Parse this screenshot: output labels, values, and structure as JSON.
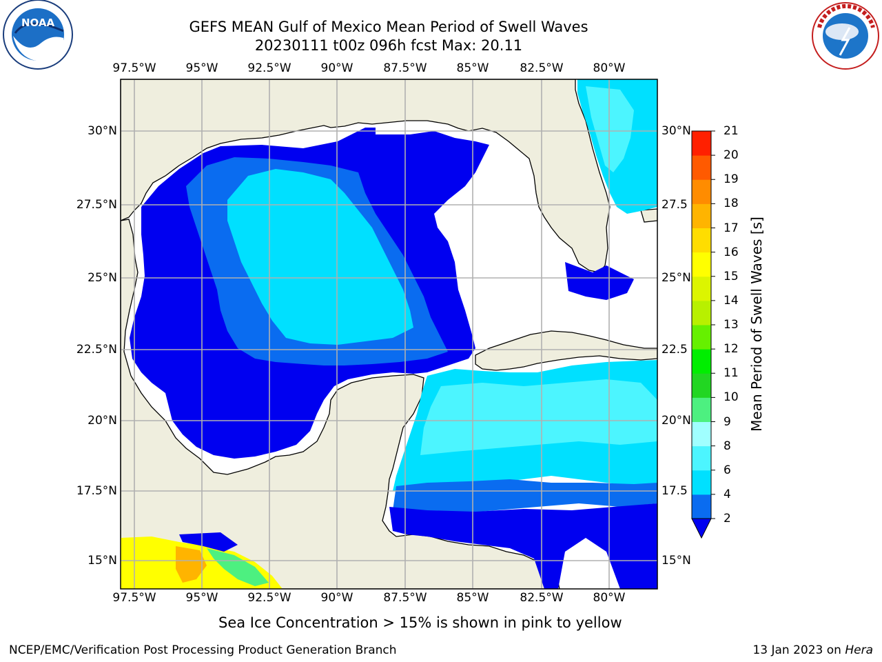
{
  "title": {
    "line1": "GEFS MEAN Gulf of Mexico Mean Period of Swell Waves",
    "line2": "20230111 t00z 096h fcst   Max: 20.11"
  },
  "axes": {
    "lon_labels": [
      "97.5°W",
      "95°W",
      "92.5°W",
      "90°W",
      "87.5°W",
      "85°W",
      "82.5°W",
      "80°W"
    ],
    "lat_labels_left": [
      "30°N",
      "27.5°N",
      "25°N",
      "22.5°N",
      "20°N",
      "17.5°N",
      "15°N"
    ],
    "lat_labels_right": [
      "30°N",
      "27.5",
      "25°N",
      "22.5",
      "20°N",
      "17.5",
      "15°N"
    ]
  },
  "colorbar": {
    "label": "Mean Period of Swell Waves [s]",
    "ticks": [
      "2",
      "4",
      "6",
      "8",
      "9",
      "10",
      "11",
      "12",
      "13",
      "14",
      "15",
      "16",
      "17",
      "18",
      "19",
      "20",
      "21"
    ],
    "levels": [
      2,
      4,
      6,
      8,
      9,
      10,
      11,
      12,
      13,
      14,
      15,
      16,
      17,
      18,
      19,
      20,
      21
    ],
    "colors": [
      "#0a6cf0",
      "#00e0ff",
      "#4cf5ff",
      "#a0ffff",
      "#4df080",
      "#22d622",
      "#00ee00",
      "#66f000",
      "#b8f000",
      "#dcf500",
      "#ffff00",
      "#ffdd00",
      "#ffb400",
      "#ff8c00",
      "#ff5a00",
      "#ff2000"
    ],
    "extend_color": "#0000f0"
  },
  "note": "Sea Ice Concentration > 15% is shown in pink to yellow",
  "footer": {
    "left": "NCEP/EMC/Verification Post Processing Product Generation Branch",
    "right_prefix": "13 Jan 2023 on",
    "right_host": "Hera"
  },
  "logos": {
    "noaa": "NOAA",
    "nws": "NATIONAL WEATHER SERVICE"
  },
  "map": {
    "land_color": "#efeede",
    "sea_blank_color": "#ffffff",
    "grid_color": "#b0b0b0"
  }
}
